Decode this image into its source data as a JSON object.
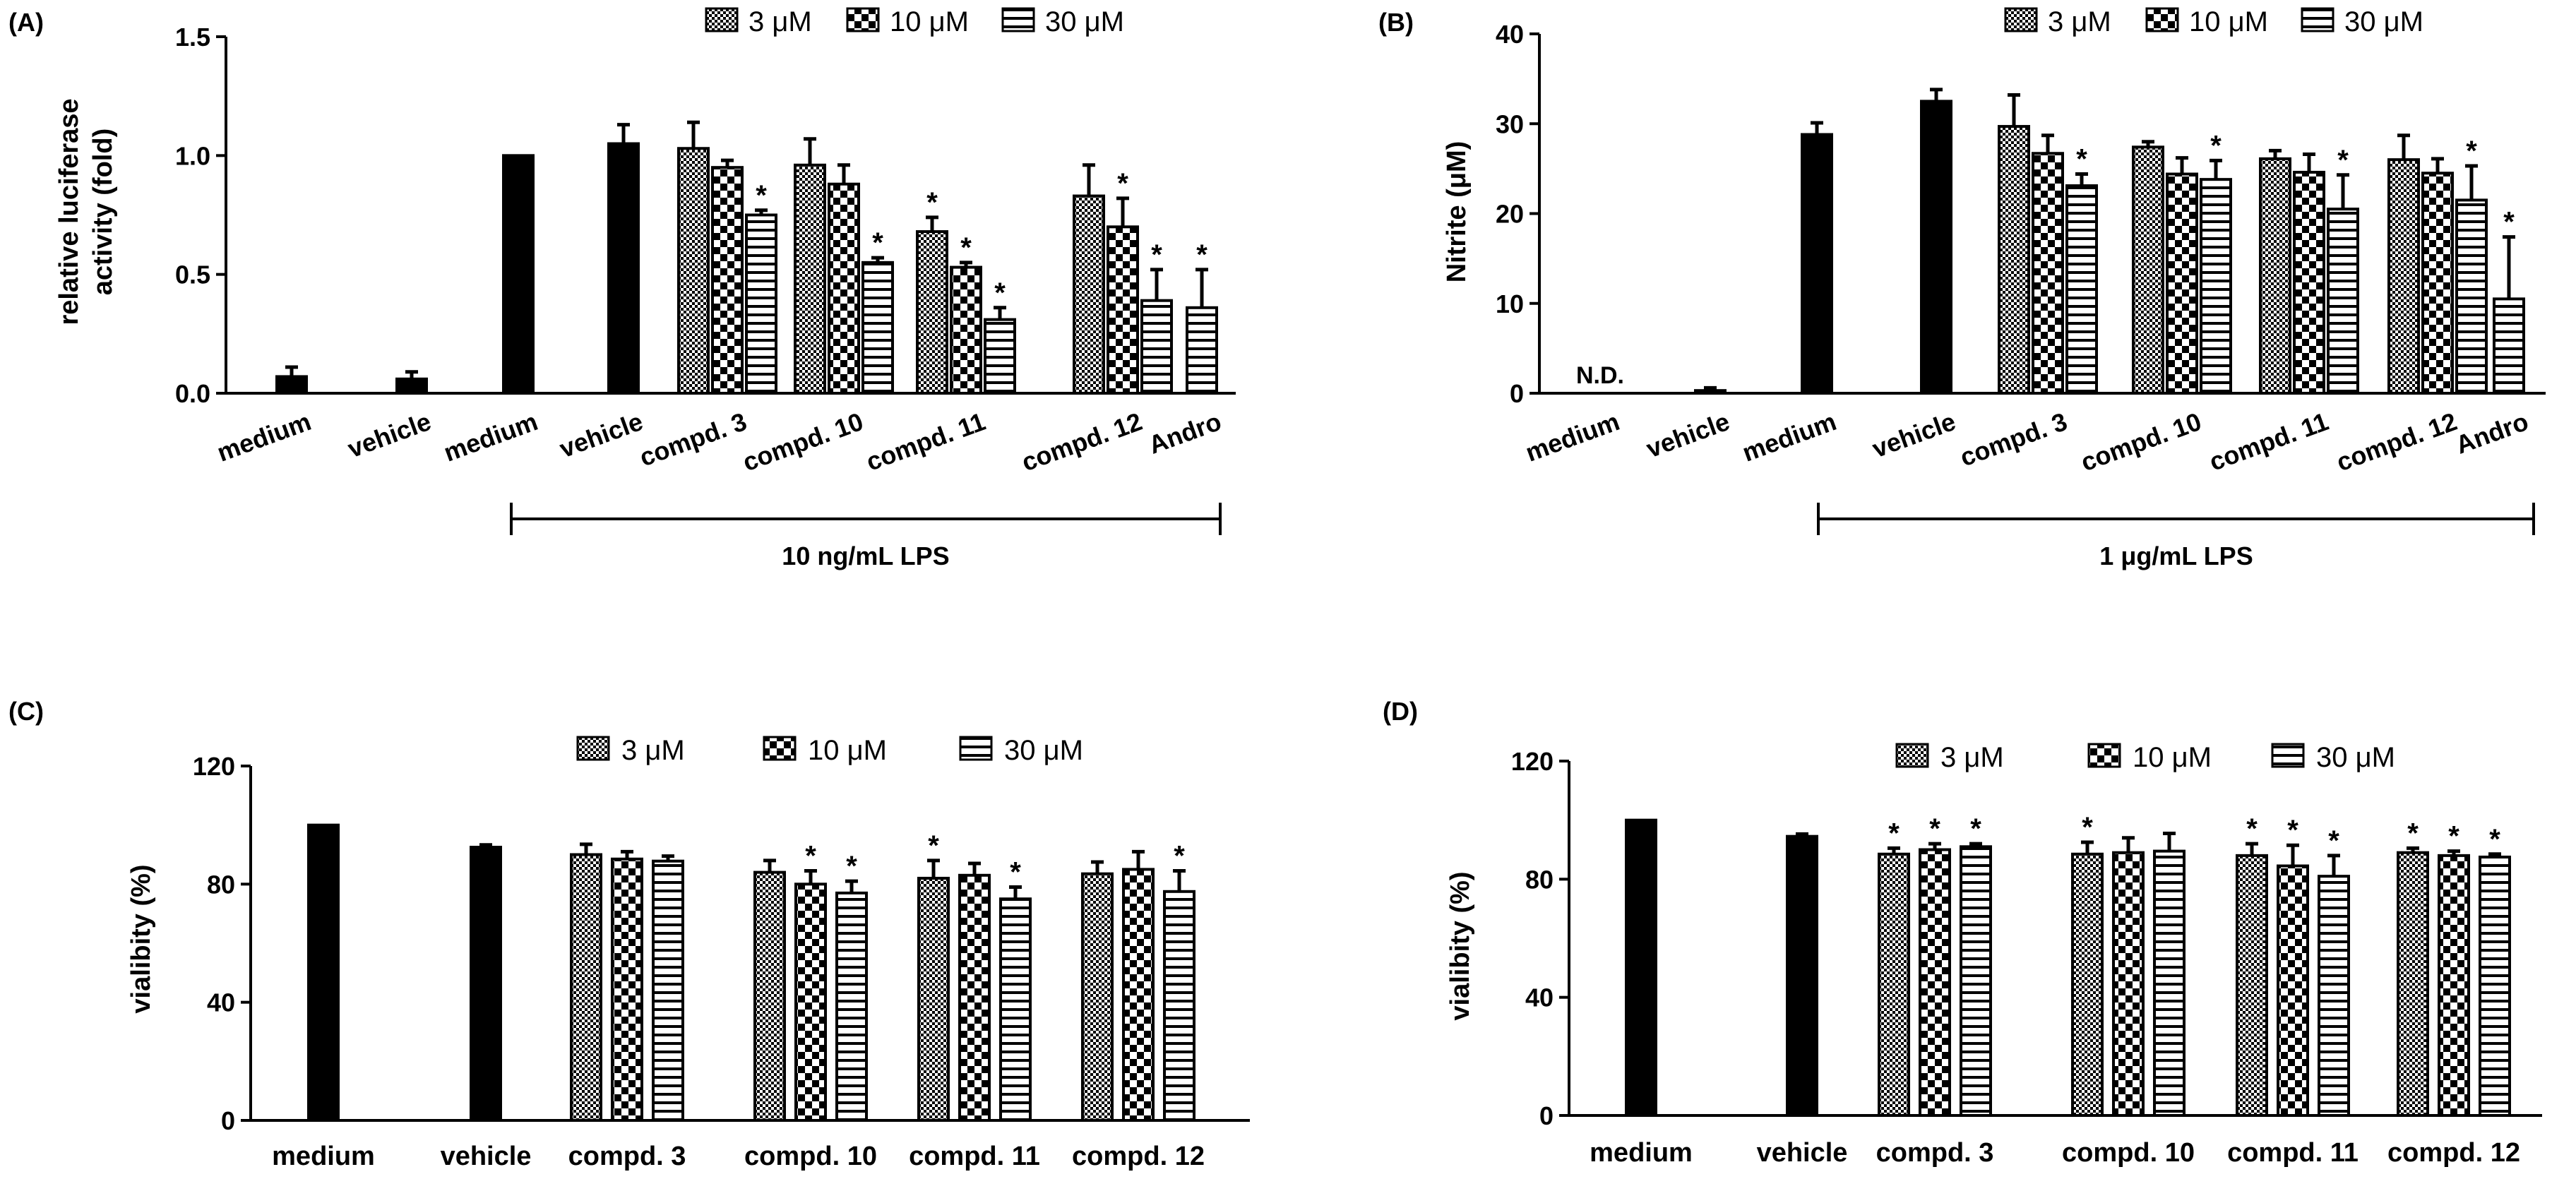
{
  "colors": {
    "ink": "#000000",
    "paper": "#ffffff"
  },
  "chart_data": [
    {
      "panel_label": "(A)",
      "type": "bar",
      "ylabel": [
        "relative luciferase",
        "activity (fold)"
      ],
      "ylim": [
        0,
        1.5
      ],
      "yticks": [
        0.0,
        0.5,
        1.0,
        1.5
      ],
      "ytick_labels": [
        "0.0",
        "0.5",
        "1.0",
        "1.5"
      ],
      "legend": [
        "3 μM",
        "10 μM",
        "30 μM"
      ],
      "bracket_label": "10 ng/mL LPS",
      "categories": [
        "medium",
        "vehicle",
        "medium",
        "vehicle",
        "compd. 3",
        "compd. 10",
        "compd. 11",
        "compd. 12",
        "Andro"
      ],
      "groups": [
        {
          "label": "medium",
          "bars": [
            {
              "fill": "solid",
              "value": 0.07,
              "err": 0.04
            }
          ]
        },
        {
          "label": "vehicle",
          "bars": [
            {
              "fill": "solid",
              "value": 0.06,
              "err": 0.03
            }
          ]
        },
        {
          "label": "medium",
          "bars": [
            {
              "fill": "solid",
              "value": 1.0,
              "err": 0.0
            }
          ]
        },
        {
          "label": "vehicle",
          "bars": [
            {
              "fill": "solid",
              "value": 1.05,
              "err": 0.08
            }
          ]
        },
        {
          "label": "compd. 3",
          "bars": [
            {
              "fill": "3",
              "value": 1.03,
              "err": 0.11
            },
            {
              "fill": "10",
              "value": 0.95,
              "err": 0.03
            },
            {
              "fill": "30",
              "value": 0.75,
              "err": 0.02,
              "star": true
            }
          ]
        },
        {
          "label": "compd. 10",
          "bars": [
            {
              "fill": "3",
              "value": 0.96,
              "err": 0.11
            },
            {
              "fill": "10",
              "value": 0.88,
              "err": 0.08
            },
            {
              "fill": "30",
              "value": 0.55,
              "err": 0.02,
              "star": true
            }
          ]
        },
        {
          "label": "compd. 11",
          "bars": [
            {
              "fill": "3",
              "value": 0.68,
              "err": 0.06,
              "star": true
            },
            {
              "fill": "10",
              "value": 0.53,
              "err": 0.02,
              "star": true
            },
            {
              "fill": "30",
              "value": 0.31,
              "err": 0.05,
              "star": true
            }
          ]
        },
        {
          "label": "compd. 12",
          "bars": [
            {
              "fill": "3",
              "value": 0.83,
              "err": 0.13
            },
            {
              "fill": "10",
              "value": 0.7,
              "err": 0.12,
              "star": true
            },
            {
              "fill": "30",
              "value": 0.39,
              "err": 0.13,
              "star": true
            }
          ]
        },
        {
          "label": "Andro",
          "bars": [
            {
              "fill": "30",
              "value": 0.36,
              "err": 0.16,
              "star": true
            }
          ]
        }
      ]
    },
    {
      "panel_label": "(B)",
      "type": "bar",
      "ylabel": [
        "Nitrite (μM)"
      ],
      "ylim": [
        0,
        40
      ],
      "yticks": [
        0,
        10,
        20,
        30,
        40
      ],
      "ytick_labels": [
        "0",
        "10",
        "20",
        "30",
        "40"
      ],
      "legend": [
        "3 μM",
        "10 μM",
        "30 μM"
      ],
      "bracket_label": "1 μg/mL LPS",
      "nd_label": "N.D.",
      "categories": [
        "medium",
        "vehicle",
        "medium",
        "vehicle",
        "compd. 3",
        "compd. 10",
        "compd. 11",
        "compd. 12",
        "Andro"
      ],
      "groups": [
        {
          "label": "medium",
          "bars": [],
          "nd": true
        },
        {
          "label": "vehicle",
          "bars": [
            {
              "fill": "solid",
              "value": 0.3,
              "err": 0.3
            }
          ]
        },
        {
          "label": "medium",
          "bars": [
            {
              "fill": "solid",
              "value": 28.8,
              "err": 1.3
            }
          ]
        },
        {
          "label": "vehicle",
          "bars": [
            {
              "fill": "solid",
              "value": 32.5,
              "err": 1.3
            }
          ]
        },
        {
          "label": "compd. 3",
          "bars": [
            {
              "fill": "3",
              "value": 29.7,
              "err": 3.5
            },
            {
              "fill": "10",
              "value": 26.7,
              "err": 2.0
            },
            {
              "fill": "30",
              "value": 23.1,
              "err": 1.3,
              "star": true
            }
          ]
        },
        {
          "label": "compd. 10",
          "bars": [
            {
              "fill": "3",
              "value": 27.4,
              "err": 0.6
            },
            {
              "fill": "10",
              "value": 24.4,
              "err": 1.8
            },
            {
              "fill": "30",
              "value": 23.8,
              "err": 2.1,
              "star": true
            }
          ]
        },
        {
          "label": "compd. 11",
          "bars": [
            {
              "fill": "3",
              "value": 26.1,
              "err": 0.9
            },
            {
              "fill": "10",
              "value": 24.6,
              "err": 2.0
            },
            {
              "fill": "30",
              "value": 20.5,
              "err": 3.8,
              "star": true
            }
          ]
        },
        {
          "label": "compd. 12",
          "bars": [
            {
              "fill": "3",
              "value": 26.0,
              "err": 2.7
            },
            {
              "fill": "10",
              "value": 24.5,
              "err": 1.6
            },
            {
              "fill": "30",
              "value": 21.5,
              "err": 3.8,
              "star": true
            }
          ]
        },
        {
          "label": "Andro",
          "bars": [
            {
              "fill": "30",
              "value": 10.5,
              "err": 6.9,
              "star": true
            }
          ]
        }
      ]
    },
    {
      "panel_label": "(C)",
      "type": "bar",
      "ylabel": [
        "vialibity (%)"
      ],
      "ylim": [
        0,
        120
      ],
      "yticks": [
        0,
        40,
        80,
        120
      ],
      "ytick_labels": [
        "0",
        "40",
        "80",
        "120"
      ],
      "legend": [
        "3 μM",
        "10 μM",
        "30 μM"
      ],
      "categories": [
        "medium",
        "vehicle",
        "compd. 3",
        "compd. 10",
        "compd. 11",
        "compd. 12"
      ],
      "groups": [
        {
          "label": "medium",
          "bars": [
            {
              "fill": "solid",
              "value": 100,
              "err": 0
            }
          ]
        },
        {
          "label": "vehicle",
          "bars": [
            {
              "fill": "solid",
              "value": 92.5,
              "err": 0.8
            }
          ]
        },
        {
          "label": "compd. 3",
          "bars": [
            {
              "fill": "3",
              "value": 90,
              "err": 3.5
            },
            {
              "fill": "10",
              "value": 88.5,
              "err": 2.5
            },
            {
              "fill": "30",
              "value": 87.8,
              "err": 1.7
            }
          ]
        },
        {
          "label": "compd. 10",
          "bars": [
            {
              "fill": "3",
              "value": 84,
              "err": 4
            },
            {
              "fill": "10",
              "value": 80,
              "err": 4.5,
              "star": true
            },
            {
              "fill": "30",
              "value": 77,
              "err": 4,
              "star": true
            }
          ]
        },
        {
          "label": "compd. 11",
          "bars": [
            {
              "fill": "3",
              "value": 82,
              "err": 6,
              "star": true
            },
            {
              "fill": "10",
              "value": 83,
              "err": 4
            },
            {
              "fill": "30",
              "value": 75,
              "err": 4,
              "star": true
            }
          ]
        },
        {
          "label": "compd. 12",
          "bars": [
            {
              "fill": "3",
              "value": 83.5,
              "err": 4
            },
            {
              "fill": "10",
              "value": 85,
              "err": 6
            },
            {
              "fill": "30",
              "value": 77.5,
              "err": 7,
              "star": true
            }
          ]
        }
      ]
    },
    {
      "panel_label": "(D)",
      "type": "bar",
      "ylabel": [
        "vialibity (%)"
      ],
      "ylim": [
        0,
        120
      ],
      "yticks": [
        0,
        40,
        80,
        120
      ],
      "ytick_labels": [
        "0",
        "40",
        "80",
        "120"
      ],
      "legend": [
        "3 μM",
        "10 μM",
        "30 μM"
      ],
      "categories": [
        "medium",
        "vehicle",
        "compd. 3",
        "compd. 10",
        "compd. 11",
        "compd. 12"
      ],
      "groups": [
        {
          "label": "medium",
          "bars": [
            {
              "fill": "solid",
              "value": 100,
              "err": 0
            }
          ]
        },
        {
          "label": "vehicle",
          "bars": [
            {
              "fill": "solid",
              "value": 94.5,
              "err": 0.8
            }
          ]
        },
        {
          "label": "compd. 3",
          "bars": [
            {
              "fill": "3",
              "value": 88.5,
              "err": 2,
              "star": true
            },
            {
              "fill": "10",
              "value": 90,
              "err": 2,
              "star": true
            },
            {
              "fill": "30",
              "value": 91,
              "err": 1,
              "star": true
            }
          ]
        },
        {
          "label": "compd. 10",
          "bars": [
            {
              "fill": "3",
              "value": 88.5,
              "err": 4,
              "star": true
            },
            {
              "fill": "10",
              "value": 89,
              "err": 5
            },
            {
              "fill": "30",
              "value": 89.5,
              "err": 6
            }
          ]
        },
        {
          "label": "compd. 11",
          "bars": [
            {
              "fill": "3",
              "value": 88,
              "err": 4,
              "star": true
            },
            {
              "fill": "10",
              "value": 84.5,
              "err": 7,
              "star": true
            },
            {
              "fill": "30",
              "value": 81,
              "err": 7,
              "star": true
            }
          ]
        },
        {
          "label": "compd. 12",
          "bars": [
            {
              "fill": "3",
              "value": 89,
              "err": 1.5,
              "star": true
            },
            {
              "fill": "10",
              "value": 88,
              "err": 1.5,
              "star": true
            },
            {
              "fill": "30",
              "value": 87.5,
              "err": 1,
              "star": true
            }
          ]
        }
      ]
    }
  ]
}
